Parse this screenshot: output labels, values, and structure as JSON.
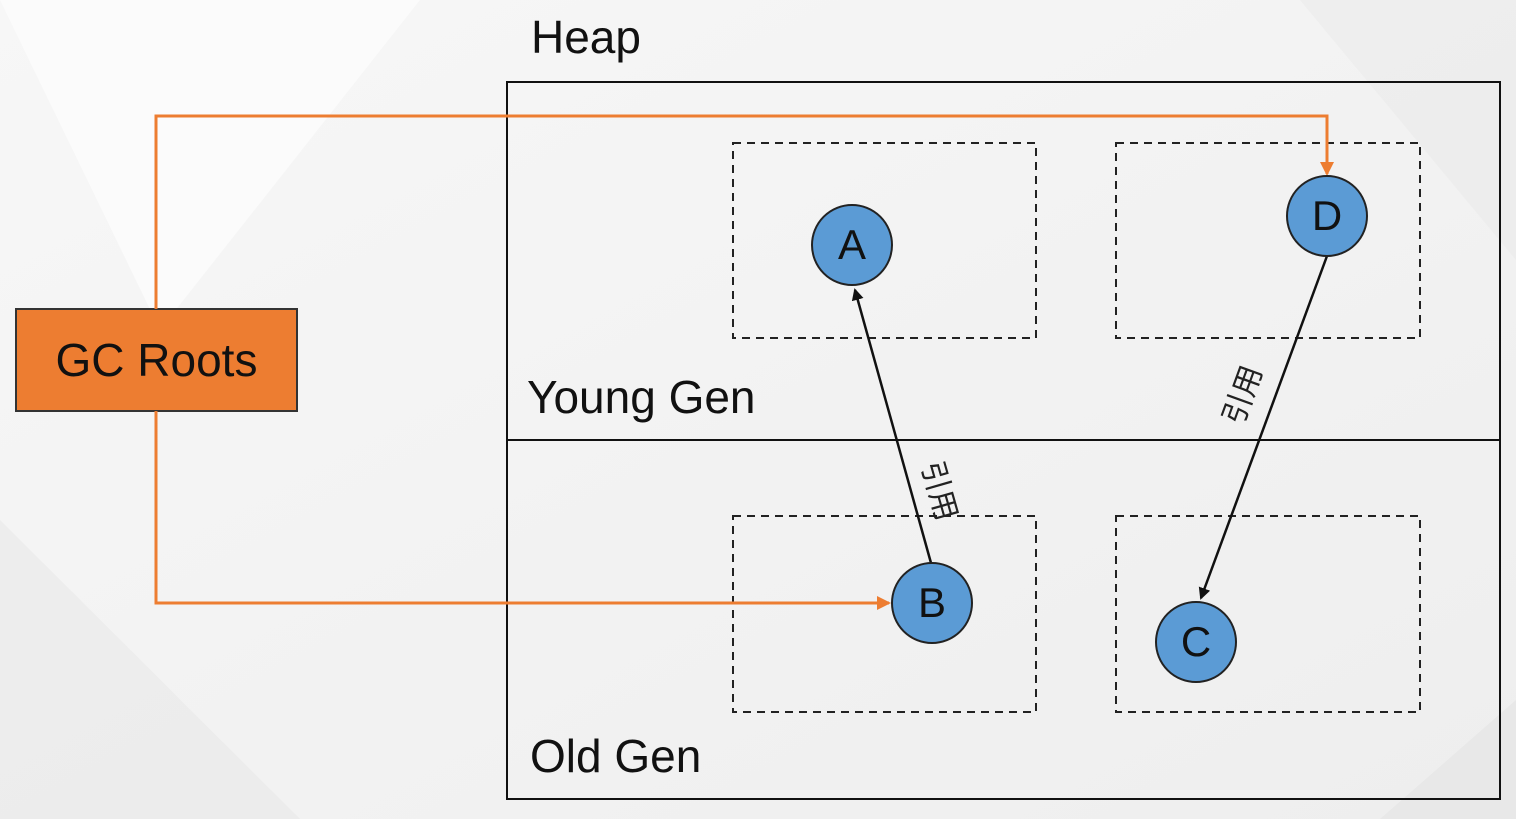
{
  "heap": {
    "title": "Heap"
  },
  "generations": {
    "young": "Young Gen",
    "old": "Old Gen"
  },
  "gc_roots": {
    "label": "GC Roots",
    "color": "#ed7d31"
  },
  "nodes": {
    "A": {
      "label": "A"
    },
    "B": {
      "label": "B"
    },
    "C": {
      "label": "C"
    },
    "D": {
      "label": "D"
    }
  },
  "node_color": "#5b9bd5",
  "edges": {
    "b_to_a": {
      "label": "引用"
    },
    "d_to_c": {
      "label": "引用"
    }
  }
}
